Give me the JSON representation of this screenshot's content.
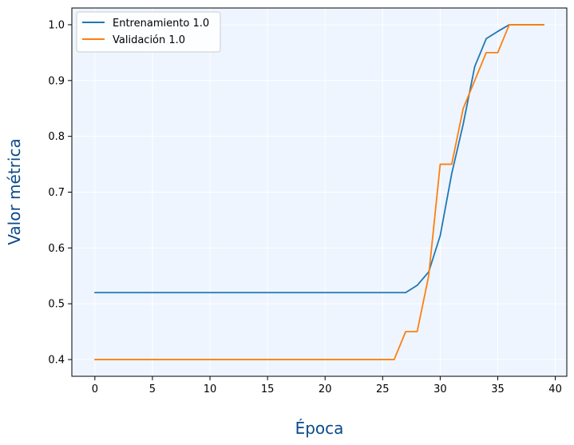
{
  "chart_data": {
    "type": "line",
    "xlabel": "Época",
    "ylabel": "Valor métrica",
    "xlim": [
      -2,
      41
    ],
    "ylim": [
      0.37,
      1.03
    ],
    "xticks": [
      0,
      5,
      10,
      15,
      20,
      25,
      30,
      35,
      40
    ],
    "yticks": [
      0.4,
      0.5,
      0.6,
      0.7,
      0.8,
      0.9,
      1.0
    ],
    "xtick_labels": [
      "0",
      "5",
      "10",
      "15",
      "20",
      "25",
      "30",
      "35",
      "40"
    ],
    "ytick_labels": [
      "0.4",
      "0.5",
      "0.6",
      "0.7",
      "0.8",
      "0.9",
      "1.0"
    ],
    "grid": true,
    "legend_position": "top-left",
    "label_color": "#0b4a8b",
    "background_color": "#eef5ff",
    "series": [
      {
        "name": "Entrenamiento 1.0",
        "color": "#1f77b4",
        "x": [
          0,
          1,
          2,
          3,
          4,
          5,
          6,
          7,
          8,
          9,
          10,
          11,
          12,
          13,
          14,
          15,
          16,
          17,
          18,
          19,
          20,
          21,
          22,
          23,
          24,
          25,
          26,
          27,
          28,
          29,
          30,
          31,
          32,
          33,
          34,
          35,
          36,
          37,
          38,
          39
        ],
        "y": [
          0.52,
          0.52,
          0.52,
          0.52,
          0.52,
          0.52,
          0.52,
          0.52,
          0.52,
          0.52,
          0.52,
          0.52,
          0.52,
          0.52,
          0.52,
          0.52,
          0.52,
          0.52,
          0.52,
          0.52,
          0.52,
          0.52,
          0.52,
          0.52,
          0.52,
          0.52,
          0.52,
          0.52,
          0.533,
          0.557,
          0.622,
          0.733,
          0.822,
          0.925,
          0.975,
          0.988,
          1.0,
          1.0,
          1.0,
          1.0
        ]
      },
      {
        "name": "Validación 1.0",
        "color": "#ff7f0e",
        "x": [
          0,
          1,
          2,
          3,
          4,
          5,
          6,
          7,
          8,
          9,
          10,
          11,
          12,
          13,
          14,
          15,
          16,
          17,
          18,
          19,
          20,
          21,
          22,
          23,
          24,
          25,
          26,
          27,
          28,
          29,
          30,
          31,
          32,
          33,
          34,
          35,
          36,
          37,
          38,
          39
        ],
        "y": [
          0.4,
          0.4,
          0.4,
          0.4,
          0.4,
          0.4,
          0.4,
          0.4,
          0.4,
          0.4,
          0.4,
          0.4,
          0.4,
          0.4,
          0.4,
          0.4,
          0.4,
          0.4,
          0.4,
          0.4,
          0.4,
          0.4,
          0.4,
          0.4,
          0.4,
          0.4,
          0.4,
          0.45,
          0.45,
          0.55,
          0.75,
          0.75,
          0.85,
          0.9,
          0.95,
          0.95,
          1.0,
          1.0,
          1.0,
          1.0
        ]
      }
    ]
  }
}
